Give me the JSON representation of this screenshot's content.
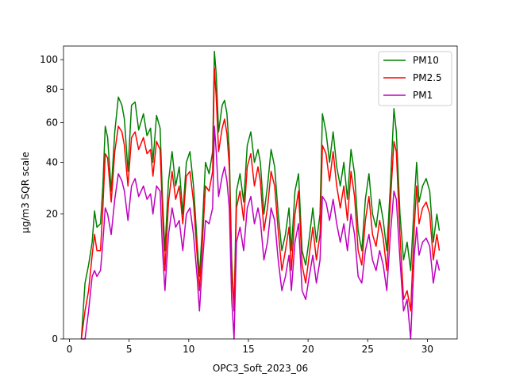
{
  "chart_data": {
    "type": "line",
    "xlabel": "OPC3_Soft_2023_06",
    "ylabel": "µg/m3 SQR scale",
    "y_scale": "sqrt",
    "xlim": [
      -0.5,
      32.5
    ],
    "ylim": [
      0,
      110
    ],
    "xticks": [
      0,
      5,
      10,
      15,
      20,
      25,
      30
    ],
    "yticks": [
      0,
      20,
      40,
      60,
      80,
      100
    ],
    "grid": false,
    "legend_position": "top-right",
    "series": [
      {
        "name": "PM10",
        "color": "#008000",
        "points": [
          [
            1.0,
            0
          ],
          [
            1.3,
            4
          ],
          [
            1.6,
            7
          ],
          [
            1.9,
            12
          ],
          [
            2.1,
            21
          ],
          [
            2.3,
            16
          ],
          [
            2.6,
            17
          ],
          [
            2.8,
            30
          ],
          [
            3.0,
            58
          ],
          [
            3.2,
            52
          ],
          [
            3.5,
            28
          ],
          [
            3.8,
            55
          ],
          [
            4.1,
            75
          ],
          [
            4.4,
            70
          ],
          [
            4.6,
            62
          ],
          [
            4.9,
            36
          ],
          [
            5.2,
            70
          ],
          [
            5.5,
            72
          ],
          [
            5.8,
            56
          ],
          [
            6.2,
            65
          ],
          [
            6.5,
            53
          ],
          [
            6.8,
            57
          ],
          [
            7.0,
            40
          ],
          [
            7.3,
            64
          ],
          [
            7.6,
            57
          ],
          [
            7.8,
            25
          ],
          [
            8.0,
            10
          ],
          [
            8.3,
            32
          ],
          [
            8.6,
            45
          ],
          [
            8.9,
            30
          ],
          [
            9.2,
            38
          ],
          [
            9.5,
            20
          ],
          [
            9.8,
            40
          ],
          [
            10.1,
            45
          ],
          [
            10.4,
            30
          ],
          [
            10.7,
            12
          ],
          [
            10.9,
            5
          ],
          [
            11.1,
            14
          ],
          [
            11.4,
            40
          ],
          [
            11.7,
            35
          ],
          [
            12.0,
            45
          ],
          [
            12.15,
            106
          ],
          [
            12.3,
            90
          ],
          [
            12.5,
            55
          ],
          [
            12.8,
            70
          ],
          [
            13.0,
            73
          ],
          [
            13.2,
            65
          ],
          [
            13.4,
            45
          ],
          [
            13.6,
            8
          ],
          [
            13.8,
            1
          ],
          [
            14.0,
            28
          ],
          [
            14.3,
            35
          ],
          [
            14.6,
            24
          ],
          [
            14.9,
            48
          ],
          [
            15.2,
            55
          ],
          [
            15.5,
            40
          ],
          [
            15.8,
            46
          ],
          [
            16.0,
            40
          ],
          [
            16.3,
            20
          ],
          [
            16.6,
            30
          ],
          [
            16.9,
            46
          ],
          [
            17.2,
            38
          ],
          [
            17.5,
            20
          ],
          [
            17.8,
            10
          ],
          [
            18.1,
            14
          ],
          [
            18.4,
            22
          ],
          [
            18.6,
            10
          ],
          [
            18.9,
            28
          ],
          [
            19.2,
            35
          ],
          [
            19.5,
            10
          ],
          [
            19.8,
            7
          ],
          [
            20.1,
            13
          ],
          [
            20.4,
            22
          ],
          [
            20.7,
            12
          ],
          [
            21.0,
            20
          ],
          [
            21.2,
            65
          ],
          [
            21.5,
            55
          ],
          [
            21.8,
            40
          ],
          [
            22.1,
            55
          ],
          [
            22.4,
            38
          ],
          [
            22.7,
            30
          ],
          [
            23.0,
            40
          ],
          [
            23.3,
            25
          ],
          [
            23.6,
            46
          ],
          [
            23.9,
            35
          ],
          [
            24.2,
            15
          ],
          [
            24.5,
            10
          ],
          [
            24.8,
            25
          ],
          [
            25.1,
            35
          ],
          [
            25.4,
            20
          ],
          [
            25.7,
            16
          ],
          [
            26.0,
            25
          ],
          [
            26.3,
            18
          ],
          [
            26.6,
            10
          ],
          [
            26.9,
            30
          ],
          [
            27.2,
            68
          ],
          [
            27.4,
            55
          ],
          [
            27.7,
            20
          ],
          [
            28.0,
            8
          ],
          [
            28.3,
            12
          ],
          [
            28.6,
            6
          ],
          [
            28.9,
            24
          ],
          [
            29.1,
            40
          ],
          [
            29.3,
            24
          ],
          [
            29.6,
            30
          ],
          [
            29.9,
            33
          ],
          [
            30.2,
            28
          ],
          [
            30.5,
            12
          ],
          [
            30.8,
            20
          ],
          [
            31.0,
            15
          ]
        ]
      },
      {
        "name": "PM2.5",
        "color": "#ff0000",
        "points": [
          [
            1.0,
            0
          ],
          [
            1.3,
            1
          ],
          [
            1.6,
            3
          ],
          [
            1.9,
            9
          ],
          [
            2.1,
            14
          ],
          [
            2.3,
            10
          ],
          [
            2.6,
            10
          ],
          [
            2.8,
            22
          ],
          [
            3.0,
            44
          ],
          [
            3.2,
            42
          ],
          [
            3.5,
            24
          ],
          [
            3.8,
            45
          ],
          [
            4.1,
            58
          ],
          [
            4.4,
            55
          ],
          [
            4.6,
            48
          ],
          [
            4.9,
            30
          ],
          [
            5.2,
            52
          ],
          [
            5.5,
            55
          ],
          [
            5.8,
            46
          ],
          [
            6.2,
            52
          ],
          [
            6.5,
            44
          ],
          [
            6.8,
            46
          ],
          [
            7.0,
            34
          ],
          [
            7.3,
            50
          ],
          [
            7.6,
            46
          ],
          [
            7.8,
            20
          ],
          [
            8.0,
            6
          ],
          [
            8.3,
            24
          ],
          [
            8.6,
            36
          ],
          [
            8.9,
            25
          ],
          [
            9.2,
            30
          ],
          [
            9.5,
            17
          ],
          [
            9.8,
            34
          ],
          [
            10.1,
            36
          ],
          [
            10.4,
            24
          ],
          [
            10.7,
            9
          ],
          [
            10.9,
            3
          ],
          [
            11.1,
            10
          ],
          [
            11.4,
            30
          ],
          [
            11.7,
            28
          ],
          [
            12.0,
            36
          ],
          [
            12.15,
            94
          ],
          [
            12.3,
            75
          ],
          [
            12.5,
            45
          ],
          [
            12.8,
            57
          ],
          [
            13.0,
            62
          ],
          [
            13.2,
            54
          ],
          [
            13.4,
            38
          ],
          [
            13.6,
            6
          ],
          [
            13.8,
            1
          ],
          [
            14.0,
            22
          ],
          [
            14.3,
            28
          ],
          [
            14.6,
            18
          ],
          [
            14.9,
            38
          ],
          [
            15.2,
            44
          ],
          [
            15.5,
            30
          ],
          [
            15.8,
            38
          ],
          [
            16.0,
            32
          ],
          [
            16.3,
            15
          ],
          [
            16.6,
            22
          ],
          [
            16.9,
            36
          ],
          [
            17.2,
            30
          ],
          [
            17.5,
            15
          ],
          [
            17.8,
            6
          ],
          [
            18.1,
            10
          ],
          [
            18.4,
            16
          ],
          [
            18.6,
            6
          ],
          [
            18.9,
            20
          ],
          [
            19.2,
            28
          ],
          [
            19.5,
            7
          ],
          [
            19.8,
            4
          ],
          [
            20.1,
            9
          ],
          [
            20.4,
            16
          ],
          [
            20.7,
            8
          ],
          [
            21.0,
            14
          ],
          [
            21.2,
            48
          ],
          [
            21.5,
            44
          ],
          [
            21.8,
            32
          ],
          [
            22.1,
            45
          ],
          [
            22.4,
            30
          ],
          [
            22.7,
            22
          ],
          [
            23.0,
            30
          ],
          [
            23.3,
            18
          ],
          [
            23.6,
            36
          ],
          [
            23.9,
            26
          ],
          [
            24.2,
            10
          ],
          [
            24.5,
            7
          ],
          [
            24.8,
            18
          ],
          [
            25.1,
            26
          ],
          [
            25.4,
            14
          ],
          [
            25.7,
            11
          ],
          [
            26.0,
            18
          ],
          [
            26.3,
            13
          ],
          [
            26.6,
            6
          ],
          [
            26.9,
            24
          ],
          [
            27.2,
            50
          ],
          [
            27.4,
            45
          ],
          [
            27.7,
            14
          ],
          [
            28.0,
            2
          ],
          [
            28.3,
            3
          ],
          [
            28.6,
            1
          ],
          [
            28.9,
            16
          ],
          [
            29.1,
            30
          ],
          [
            29.3,
            17
          ],
          [
            29.6,
            22
          ],
          [
            29.9,
            24
          ],
          [
            30.2,
            20
          ],
          [
            30.5,
            8
          ],
          [
            30.8,
            14
          ],
          [
            31.0,
            10
          ]
        ]
      },
      {
        "name": "PM1",
        "color": "#bf00bf",
        "points": [
          [
            1.0,
            0
          ],
          [
            1.3,
            0
          ],
          [
            1.6,
            1
          ],
          [
            1.9,
            5
          ],
          [
            2.1,
            6
          ],
          [
            2.3,
            5
          ],
          [
            2.6,
            6
          ],
          [
            2.8,
            12
          ],
          [
            3.0,
            22
          ],
          [
            3.2,
            20
          ],
          [
            3.5,
            14
          ],
          [
            3.8,
            25
          ],
          [
            4.1,
            35
          ],
          [
            4.4,
            32
          ],
          [
            4.6,
            28
          ],
          [
            4.9,
            18
          ],
          [
            5.2,
            30
          ],
          [
            5.5,
            33
          ],
          [
            5.8,
            26
          ],
          [
            6.2,
            30
          ],
          [
            6.5,
            25
          ],
          [
            6.8,
            27
          ],
          [
            7.0,
            20
          ],
          [
            7.3,
            30
          ],
          [
            7.6,
            28
          ],
          [
            7.8,
            10
          ],
          [
            8.0,
            3
          ],
          [
            8.3,
            14
          ],
          [
            8.6,
            22
          ],
          [
            8.9,
            16
          ],
          [
            9.2,
            18
          ],
          [
            9.5,
            10
          ],
          [
            9.8,
            20
          ],
          [
            10.1,
            22
          ],
          [
            10.4,
            14
          ],
          [
            10.7,
            5
          ],
          [
            10.9,
            1
          ],
          [
            11.1,
            6
          ],
          [
            11.4,
            18
          ],
          [
            11.7,
            17
          ],
          [
            12.0,
            22
          ],
          [
            12.15,
            58
          ],
          [
            12.3,
            45
          ],
          [
            12.5,
            26
          ],
          [
            12.8,
            34
          ],
          [
            13.0,
            38
          ],
          [
            13.2,
            32
          ],
          [
            13.4,
            22
          ],
          [
            13.6,
            2
          ],
          [
            13.8,
            0
          ],
          [
            14.0,
            12
          ],
          [
            14.3,
            16
          ],
          [
            14.6,
            10
          ],
          [
            14.9,
            22
          ],
          [
            15.2,
            26
          ],
          [
            15.5,
            17
          ],
          [
            15.8,
            22
          ],
          [
            16.0,
            18
          ],
          [
            16.3,
            8
          ],
          [
            16.6,
            12
          ],
          [
            16.9,
            22
          ],
          [
            17.2,
            18
          ],
          [
            17.5,
            8
          ],
          [
            17.8,
            3
          ],
          [
            18.1,
            5
          ],
          [
            18.4,
            9
          ],
          [
            18.6,
            3
          ],
          [
            18.9,
            12
          ],
          [
            19.2,
            17
          ],
          [
            19.5,
            3
          ],
          [
            19.8,
            2
          ],
          [
            20.1,
            5
          ],
          [
            20.4,
            9
          ],
          [
            20.7,
            4
          ],
          [
            21.0,
            8
          ],
          [
            21.2,
            26
          ],
          [
            21.5,
            24
          ],
          [
            21.8,
            18
          ],
          [
            22.1,
            25
          ],
          [
            22.4,
            17
          ],
          [
            22.7,
            12
          ],
          [
            23.0,
            17
          ],
          [
            23.3,
            10
          ],
          [
            23.6,
            20
          ],
          [
            23.9,
            14
          ],
          [
            24.2,
            5
          ],
          [
            24.5,
            4
          ],
          [
            24.8,
            10
          ],
          [
            25.1,
            14
          ],
          [
            25.4,
            8
          ],
          [
            25.7,
            6
          ],
          [
            26.0,
            10
          ],
          [
            26.3,
            7
          ],
          [
            26.6,
            3
          ],
          [
            26.9,
            14
          ],
          [
            27.2,
            28
          ],
          [
            27.4,
            25
          ],
          [
            27.7,
            8
          ],
          [
            28.0,
            1
          ],
          [
            28.3,
            2
          ],
          [
            28.6,
            0
          ],
          [
            28.9,
            9
          ],
          [
            29.1,
            16
          ],
          [
            29.3,
            9
          ],
          [
            29.6,
            12
          ],
          [
            29.9,
            13
          ],
          [
            30.2,
            11
          ],
          [
            30.5,
            4
          ],
          [
            30.8,
            8
          ],
          [
            31.0,
            6
          ]
        ]
      }
    ]
  }
}
